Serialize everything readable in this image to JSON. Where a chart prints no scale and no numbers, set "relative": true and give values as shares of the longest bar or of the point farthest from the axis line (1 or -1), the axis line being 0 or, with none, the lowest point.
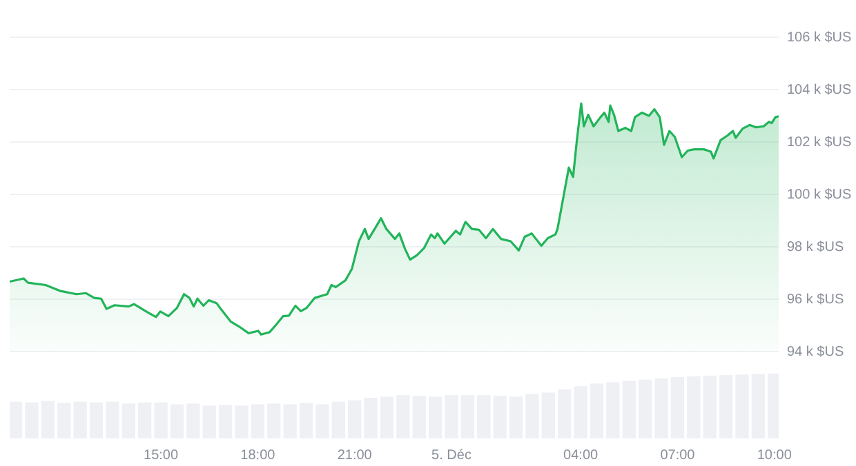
{
  "chart_data": [
    {
      "type": "area",
      "x": [
        "--12-04T10:19",
        "--12-04T10:45",
        "--12-04T10:53",
        "--12-04T11:26",
        "--12-04T11:52",
        "--12-04T12:23",
        "--12-04T12:41",
        "--12-04T12:56",
        "--12-04T13:09",
        "--12-04T13:19",
        "--12-04T13:34",
        "--12-04T14:00",
        "--12-04T14:10",
        "--12-04T14:36",
        "--12-04T14:51",
        "--12-04T14:59",
        "--12-04T15:14",
        "--12-04T15:30",
        "--12-04T15:43",
        "--12-04T15:53",
        "--12-04T16:01",
        "--12-04T16:08",
        "--12-04T16:19",
        "--12-04T16:29",
        "--12-04T16:44",
        "--12-04T16:52",
        "--12-04T17:10",
        "--12-04T17:25",
        "--12-04T17:43",
        "--12-04T18:01",
        "--12-04T18:06",
        "--12-04T18:22",
        "--12-04T18:34",
        "--12-04T18:47",
        "--12-04T18:58",
        "--12-04T19:10",
        "--12-04T19:20",
        "--12-04T19:31",
        "--12-04T19:46",
        "--12-04T20:09",
        "--12-04T20:17",
        "--12-04T20:25",
        "--12-04T20:43",
        "--12-04T20:55",
        "--12-04T21:08",
        "--12-04T21:19",
        "--12-04T21:26",
        "--12-04T21:39",
        "--12-04T21:49",
        "--12-04T21:59",
        "--12-04T22:15",
        "--12-04T22:23",
        "--12-04T22:33",
        "--12-04T22:43",
        "--12-04T22:56",
        "--12-04T23:09",
        "--12-04T23:22",
        "--12-04T23:29",
        "--12-04T23:34",
        "--12-04T23:47",
        "--12-05T00:08",
        "--12-05T00:16",
        "--12-05T00:26",
        "--12-05T00:38",
        "--12-05T00:51",
        "--12-05T01:04",
        "--12-05T01:17",
        "--12-05T01:32",
        "--12-05T01:50",
        "--12-05T02:05",
        "--12-05T02:16",
        "--12-05T02:29",
        "--12-05T02:47",
        "--12-05T02:59",
        "--12-05T03:13",
        "--12-05T03:17",
        "--12-05T03:28",
        "--12-05T03:38",
        "--12-05T03:46",
        "--12-05T03:53",
        "--12-05T04:01",
        "--12-05T04:06",
        "--12-05T04:14",
        "--12-05T04:24",
        "--12-05T04:37",
        "--12-05T04:44",
        "--12-05T04:52",
        "--12-05T04:55",
        "--12-05T05:02",
        "--12-05T05:10",
        "--12-05T05:23",
        "--12-05T05:34",
        "--12-05T05:41",
        "--12-05T05:54",
        "--12-05T06:07",
        "--12-05T06:17",
        "--12-05T06:27",
        "--12-05T06:35",
        "--12-05T06:45",
        "--12-05T06:55",
        "--12-05T07:08",
        "--12-05T07:19",
        "--12-05T07:31",
        "--12-05T07:49",
        "--12-05T08:02",
        "--12-05T08:07",
        "--12-05T08:20",
        "--12-05T08:33",
        "--12-05T08:43",
        "--12-05T08:48",
        "--12-05T09:01",
        "--12-05T09:14",
        "--12-05T09:26",
        "--12-05T09:40",
        "--12-05T09:50",
        "--12-05T09:55",
        "--12-05T10:02",
        "--12-05T10:08"
      ],
      "series": [
        {
          "color": "#22b45a",
          "values": [
            96.67,
            96.79,
            96.63,
            96.54,
            96.32,
            96.19,
            96.23,
            96.05,
            96.02,
            95.63,
            95.77,
            95.72,
            95.81,
            95.49,
            95.32,
            95.53,
            95.35,
            95.67,
            96.19,
            96.05,
            95.72,
            96.02,
            95.75,
            95.96,
            95.84,
            95.61,
            95.14,
            94.96,
            94.7,
            94.79,
            94.65,
            94.74,
            95.02,
            95.35,
            95.37,
            95.75,
            95.54,
            95.67,
            96.05,
            96.19,
            96.54,
            96.46,
            96.72,
            97.16,
            98.21,
            98.68,
            98.3,
            98.74,
            99.09,
            98.68,
            98.3,
            98.51,
            97.95,
            97.51,
            97.68,
            97.95,
            98.47,
            98.33,
            98.51,
            98.12,
            98.61,
            98.47,
            98.95,
            98.68,
            98.65,
            98.33,
            98.68,
            98.3,
            98.21,
            97.86,
            98.38,
            98.51,
            98.04,
            98.33,
            98.47,
            98.68,
            99.9,
            101.02,
            100.67,
            102.07,
            103.47,
            102.6,
            103.04,
            102.6,
            102.95,
            103.12,
            102.77,
            103.39,
            103.04,
            102.42,
            102.54,
            102.42,
            102.95,
            103.12,
            103.0,
            103.25,
            102.95,
            101.89,
            102.42,
            102.19,
            101.42,
            101.67,
            101.72,
            101.72,
            101.63,
            101.37,
            102.07,
            102.25,
            102.42,
            102.16,
            102.51,
            102.65,
            102.56,
            102.6,
            102.77,
            102.72,
            102.95,
            102.98
          ]
        }
      ],
      "xlim": [
        "--12-04T10:19",
        "--12-05T10:08"
      ],
      "xticks": [
        {
          "value": "--12-04T15:00",
          "label": "15:00"
        },
        {
          "value": "--12-04T18:00",
          "label": "18:00"
        },
        {
          "value": "--12-04T21:00",
          "label": "21:00"
        },
        {
          "value": "--12-05T00:00",
          "label": "5. Déc"
        },
        {
          "value": "--12-05T04:00",
          "label": "04:00"
        },
        {
          "value": "--12-05T07:00",
          "label": "07:00"
        },
        {
          "value": "--12-05T10:00",
          "label": "10:00"
        }
      ],
      "ylim": [
        94,
        106
      ],
      "yticks": [
        {
          "value": 94,
          "label": "94 k $US"
        },
        {
          "value": 96,
          "label": "96 k $US"
        },
        {
          "value": 98,
          "label": "98 k $US"
        },
        {
          "value": 100,
          "label": "100 k $US"
        },
        {
          "value": 102,
          "label": "102 k $US"
        },
        {
          "value": 104,
          "label": "104 k $US"
        },
        {
          "value": 106,
          "label": "106 k $US"
        }
      ],
      "grid": "y",
      "tick_labels": "y"
    },
    {
      "type": "bar",
      "relative": true,
      "x": [
        "--12-04T10:30",
        "--12-04T11:00",
        "--12-04T11:30",
        "--12-04T12:00",
        "--12-04T12:30",
        "--12-04T13:00",
        "--12-04T13:30",
        "--12-04T14:00",
        "--12-04T14:30",
        "--12-04T15:00",
        "--12-04T15:30",
        "--12-04T16:00",
        "--12-04T16:30",
        "--12-04T17:00",
        "--12-04T17:30",
        "--12-04T18:00",
        "--12-04T18:30",
        "--12-04T19:00",
        "--12-04T19:30",
        "--12-04T20:00",
        "--12-04T20:30",
        "--12-04T21:00",
        "--12-04T21:30",
        "--12-04T22:00",
        "--12-04T22:30",
        "--12-04T23:00",
        "--12-04T23:30",
        "--12-05T00:00",
        "--12-05T00:30",
        "--12-05T01:00",
        "--12-05T01:30",
        "--12-05T02:00",
        "--12-05T02:30",
        "--12-05T03:00",
        "--12-05T03:30",
        "--12-05T04:00",
        "--12-05T04:30",
        "--12-05T05:00",
        "--12-05T05:30",
        "--12-05T06:00",
        "--12-05T06:30",
        "--12-05T07:00",
        "--12-05T07:30",
        "--12-05T08:00",
        "--12-05T08:30",
        "--12-05T09:00",
        "--12-05T09:30",
        "--12-05T10:00"
      ],
      "values": [
        0.56,
        0.55,
        0.57,
        0.54,
        0.56,
        0.55,
        0.56,
        0.53,
        0.55,
        0.55,
        0.52,
        0.53,
        0.5,
        0.51,
        0.5,
        0.52,
        0.53,
        0.52,
        0.54,
        0.52,
        0.56,
        0.58,
        0.62,
        0.64,
        0.66,
        0.65,
        0.64,
        0.66,
        0.66,
        0.66,
        0.65,
        0.64,
        0.68,
        0.7,
        0.75,
        0.8,
        0.84,
        0.86,
        0.88,
        0.9,
        0.92,
        0.94,
        0.95,
        0.96,
        0.97,
        0.98,
        0.99,
        1.0
      ],
      "color": "#eef0f4",
      "xlim": [
        "--12-04T10:19",
        "--12-05T10:08"
      ],
      "xticks": [
        {
          "value": "--12-04T15:00",
          "label": "15:00"
        },
        {
          "value": "--12-04T18:00",
          "label": "18:00"
        },
        {
          "value": "--12-04T21:00",
          "label": "21:00"
        },
        {
          "value": "--12-05T00:00",
          "label": "5. Déc"
        },
        {
          "value": "--12-05T04:00",
          "label": "04:00"
        },
        {
          "value": "--12-05T07:00",
          "label": "07:00"
        },
        {
          "value": "--12-05T10:00",
          "label": "10:00"
        }
      ],
      "tick_labels": "x"
    }
  ]
}
